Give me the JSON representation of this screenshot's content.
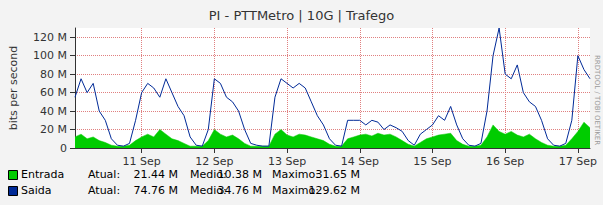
{
  "chart_data": {
    "type": "line",
    "title": "PI - PTTMetro | 10G | Trafego",
    "y_label": "bits per second",
    "annotations": [
      "RRDTOOL / TOBI OETIKER"
    ],
    "categories": [
      null,
      null,
      null,
      null,
      null,
      null,
      null,
      null,
      null,
      null,
      null,
      "11 Sep",
      null,
      null,
      null,
      null,
      null,
      null,
      null,
      null,
      null,
      null,
      null,
      "12 Sep",
      null,
      null,
      null,
      null,
      null,
      null,
      null,
      null,
      null,
      null,
      null,
      "13 Sep",
      null,
      null,
      null,
      null,
      null,
      null,
      null,
      null,
      null,
      null,
      null,
      "14 Sep",
      null,
      null,
      null,
      null,
      null,
      null,
      null,
      null,
      null,
      null,
      null,
      "15 Sep",
      null,
      null,
      null,
      null,
      null,
      null,
      null,
      null,
      null,
      null,
      null,
      "16 Sep",
      null,
      null,
      null,
      null,
      null,
      null,
      null,
      null,
      null,
      null,
      null,
      "17 Sep",
      null,
      null
    ],
    "series": [
      {
        "name": "Entrada",
        "type": "area",
        "color": "#00cc00",
        "values": [
          12,
          15,
          10,
          12,
          8,
          6,
          3,
          2,
          2,
          3,
          8,
          12,
          15,
          12,
          20,
          15,
          10,
          8,
          5,
          2,
          2,
          2,
          8,
          20,
          15,
          12,
          14,
          10,
          5,
          2,
          2,
          2,
          2,
          15,
          20,
          14,
          12,
          15,
          14,
          12,
          10,
          8,
          4,
          2,
          2,
          10,
          12,
          14,
          15,
          13,
          16,
          14,
          15,
          12,
          8,
          4,
          2,
          6,
          10,
          12,
          14,
          15,
          16,
          8,
          4,
          2,
          2,
          3,
          12,
          25,
          18,
          15,
          18,
          14,
          12,
          15,
          10,
          6,
          3,
          2,
          2,
          3,
          10,
          18,
          28,
          22
        ],
        "stats": [
          {
            "label": "Atual:",
            "value": 21.44,
            "value_label": "21.44 M"
          },
          {
            "label": "Medio:",
            "value": 10.38,
            "value_label": "10.38 M"
          },
          {
            "label": "Maximo:",
            "value": 31.65,
            "value_label": "31.65 M"
          }
        ]
      },
      {
        "name": "Saida",
        "type": "line",
        "color": "#002a97",
        "values": [
          55,
          75,
          60,
          70,
          40,
          30,
          10,
          3,
          2,
          5,
          30,
          60,
          70,
          65,
          55,
          75,
          60,
          45,
          35,
          12,
          3,
          2,
          20,
          75,
          70,
          55,
          50,
          40,
          20,
          5,
          3,
          2,
          2,
          55,
          75,
          70,
          65,
          70,
          65,
          50,
          35,
          25,
          10,
          3,
          2,
          30,
          30,
          30,
          25,
          30,
          28,
          20,
          25,
          22,
          18,
          8,
          3,
          15,
          20,
          25,
          35,
          30,
          45,
          25,
          10,
          3,
          2,
          5,
          40,
          100,
          130,
          80,
          75,
          90,
          60,
          50,
          45,
          30,
          10,
          3,
          2,
          5,
          30,
          100,
          85,
          75
        ],
        "stats": [
          {
            "label": "Atual:",
            "value": 74.76,
            "value_label": "74.76 M"
          },
          {
            "label": "Medio:",
            "value": 34.76,
            "value_label": "34.76 M"
          },
          {
            "label": "Maximo:",
            "value": 129.62,
            "value_label": "129.62 M"
          }
        ]
      }
    ],
    "ylim": [
      0,
      130
    ],
    "yticks": [
      0,
      {
        "value": 20,
        "label": "20 M"
      },
      {
        "value": 40,
        "label": "40 M"
      },
      {
        "value": 60,
        "label": "60 M"
      },
      {
        "value": 80,
        "label": "80 M"
      },
      {
        "value": 100,
        "label": "100 M"
      },
      {
        "value": 120,
        "label": "120 M"
      }
    ],
    "grid": true
  }
}
